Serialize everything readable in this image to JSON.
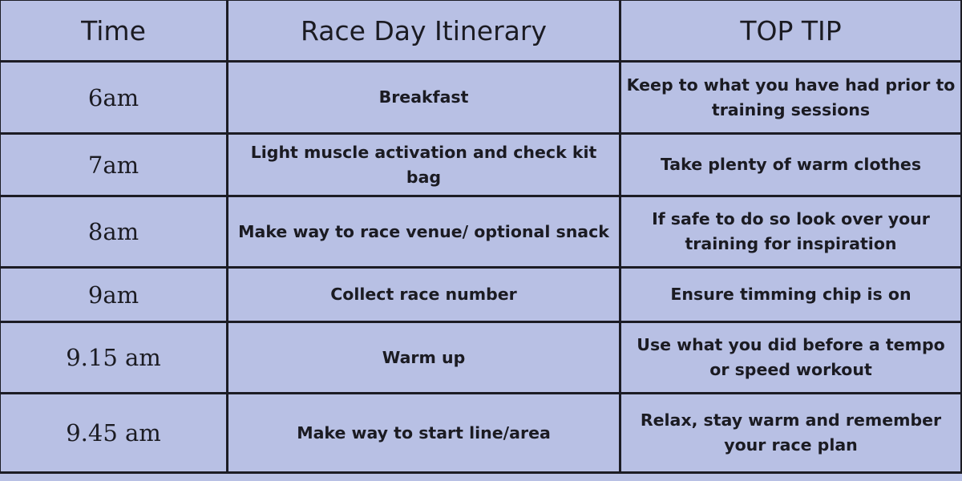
{
  "headers": {
    "time": "Time",
    "itinerary": "Race Day Itinerary",
    "tip": "TOP TIP"
  },
  "rows": [
    {
      "time": "6am",
      "activity": "Breakfast",
      "tip": "Keep to what you have had prior to training sessions"
    },
    {
      "time": "7am",
      "activity": "Light muscle activation and check kit bag",
      "tip": "Take plenty of warm clothes"
    },
    {
      "time": "8am",
      "activity": "Make way to race venue/ optional snack",
      "tip": "If safe to do so look over your training for inspiration"
    },
    {
      "time": "9am",
      "activity": "Collect race number",
      "tip": "Ensure timming chip is on"
    },
    {
      "time": "9.15 am",
      "activity": "Warm up",
      "tip": "Use what you did before a tempo or speed workout"
    },
    {
      "time": "9.45 am",
      "activity": "Make way to start line/area",
      "tip": "Relax,  stay warm and remember your race plan"
    }
  ],
  "colors": {
    "background": "#b8c0e4",
    "border": "#1c1c24",
    "text": "#1b1b22"
  }
}
